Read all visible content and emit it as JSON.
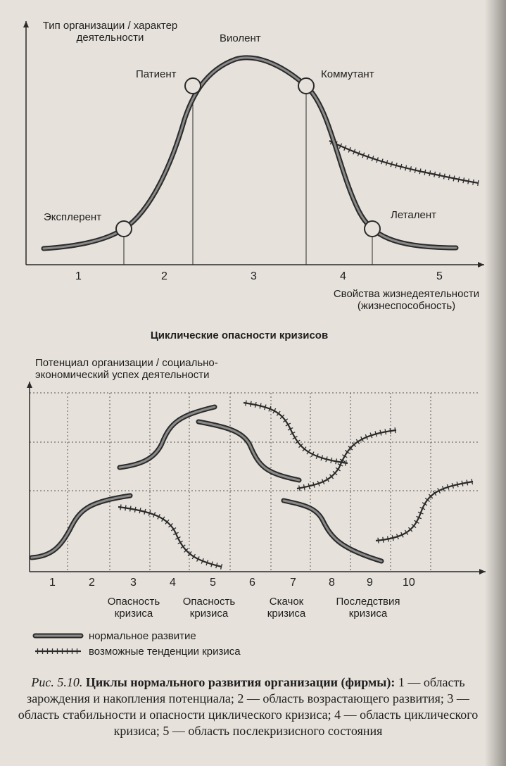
{
  "top_chart": {
    "y_axis_label": "Тип организации / характер деятельности",
    "x_axis_label": "Свойства жизнедеятельности (жизнеспособность)",
    "stage_names": [
      "Эксплерент",
      "Патиент",
      "Виолент",
      "Коммутант",
      "Леталент"
    ],
    "region_numbers": [
      "1",
      "2",
      "3",
      "4",
      "5"
    ]
  },
  "section_title": "Циклические опасности кризисов",
  "bottom_chart": {
    "y_axis_label": "Потенциал организации / социально-экономический успех деятельности",
    "period_numbers": [
      "1",
      "2",
      "3",
      "4",
      "5",
      "6",
      "7",
      "8",
      "9",
      "10"
    ],
    "phase_labels": [
      "Опасность кризиса",
      "Опасность кризиса",
      "Скачок кризиса",
      "Последствия кризиса"
    ]
  },
  "legend": {
    "normal": "нормальное развитие",
    "crisis": "возможные тенденции кризиса"
  },
  "caption": {
    "prefix": "Рис. 5.10.",
    "title": "Циклы нормального развития организации (фирмы)",
    "colon": ":",
    "body": "1 — область зарождения и накопления потенциала; 2 — область возрастающего развития; 3 — область стабильности и опасности циклического кризиса; 4 — область циклического кризиса; 5 — область послекризисного состояния"
  },
  "colors": {
    "line": "#2a2a2a",
    "curve_fill": "#8a8a8a",
    "background": "#e6e1da"
  }
}
